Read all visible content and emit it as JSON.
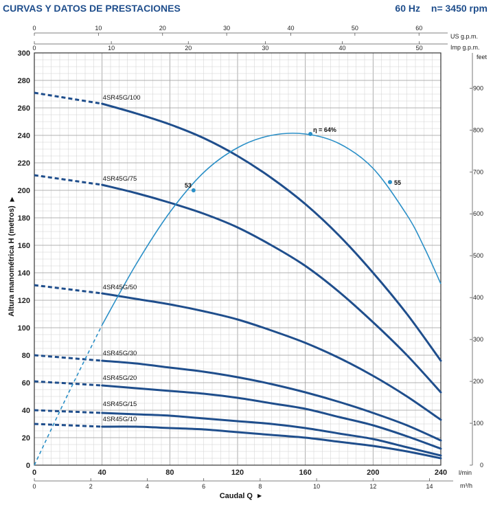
{
  "header": {
    "title": "CURVAS Y DATOS DE PRESTACIONES",
    "frequency": "60 Hz",
    "speed": "n= 3450 rpm"
  },
  "chart_data": {
    "type": "line",
    "ylabel": "Altura manométrica H (metros)",
    "xlabel": "Caudal Q",
    "x_unit": "l/min",
    "x_unit_m3h": "m³/h",
    "y_unit_right": "feet",
    "unit_usgpm": "US g.p.m.",
    "unit_impgpm": "Imp g.p.m.",
    "xlim": [
      0,
      240
    ],
    "ylim": [
      0,
      300
    ],
    "x_ticks_lmin": [
      0,
      40,
      80,
      120,
      160,
      200,
      240
    ],
    "y_ticks_m": [
      0,
      20,
      40,
      60,
      80,
      100,
      120,
      140,
      160,
      180,
      200,
      220,
      240,
      260,
      280,
      300
    ],
    "ticks_m3h": [
      0,
      2,
      4,
      6,
      8,
      10,
      12,
      14
    ],
    "ticks_usgpm": [
      0,
      10,
      20,
      30,
      40,
      50,
      60
    ],
    "ticks_impgpm": [
      0,
      10,
      20,
      30,
      40,
      50
    ],
    "ticks_feet": [
      0,
      100,
      200,
      300,
      400,
      500,
      600,
      700,
      800,
      900
    ],
    "grid": true,
    "series": [
      {
        "name": "4SR45G/100",
        "dash_end_x": 40,
        "label_pos": [
          40,
          264
        ],
        "x": [
          0,
          40,
          60,
          80,
          100,
          120,
          140,
          160,
          180,
          200,
          220,
          240
        ],
        "y": [
          271,
          263,
          256,
          248,
          238,
          225,
          209,
          190,
          167,
          140,
          110,
          76
        ]
      },
      {
        "name": "4SR45G/75",
        "dash_end_x": 40,
        "label_pos": [
          40,
          205
        ],
        "x": [
          0,
          40,
          60,
          80,
          100,
          120,
          140,
          160,
          180,
          200,
          220,
          240
        ],
        "y": [
          211,
          204,
          198,
          191,
          183,
          173,
          160,
          145,
          126,
          104,
          80,
          53
        ]
      },
      {
        "name": "4SR45G/50",
        "dash_end_x": 40,
        "label_pos": [
          40,
          126
        ],
        "x": [
          0,
          40,
          60,
          80,
          100,
          120,
          140,
          160,
          180,
          200,
          220,
          240
        ],
        "y": [
          131,
          125,
          121,
          117,
          112,
          106,
          98,
          89,
          78,
          65,
          50,
          33
        ]
      },
      {
        "name": "4SR45G/30",
        "dash_end_x": 40,
        "label_pos": [
          40,
          78
        ],
        "x": [
          0,
          40,
          60,
          80,
          100,
          120,
          140,
          160,
          180,
          200,
          220,
          240
        ],
        "y": [
          80,
          76,
          74,
          71,
          68,
          64,
          59,
          53,
          46,
          38,
          29,
          18
        ]
      },
      {
        "name": "4SR45G/20",
        "dash_end_x": 40,
        "label_pos": [
          40,
          60
        ],
        "x": [
          0,
          40,
          60,
          80,
          100,
          120,
          140,
          160,
          180,
          200,
          220,
          240
        ],
        "y": [
          61,
          58,
          56,
          54,
          52,
          49,
          45,
          41,
          35,
          29,
          21,
          12
        ]
      },
      {
        "name": "4SR45G/15",
        "dash_end_x": 40,
        "label_pos": [
          40,
          41
        ],
        "x": [
          0,
          40,
          60,
          80,
          100,
          120,
          140,
          160,
          180,
          200,
          220,
          240
        ],
        "y": [
          40,
          38,
          37,
          36,
          34,
          32,
          30,
          27,
          23,
          19,
          13,
          7
        ]
      },
      {
        "name": "4SR45G/10",
        "dash_end_x": 40,
        "label_pos": [
          40,
          30
        ],
        "x": [
          0,
          40,
          60,
          80,
          100,
          120,
          140,
          160,
          180,
          200,
          220,
          240
        ],
        "y": [
          30,
          28,
          28,
          27,
          26,
          24,
          22,
          20,
          17,
          14,
          10,
          5
        ]
      }
    ],
    "efficiency": {
      "color": "#2a8fc7",
      "dash_end_x": 40,
      "x": [
        0,
        20,
        40,
        60,
        80,
        100,
        120,
        140,
        160,
        180,
        200,
        220,
        230,
        240
      ],
      "y": [
        0,
        52,
        102,
        146,
        184,
        213,
        231,
        240,
        241,
        234,
        216,
        182,
        159,
        132
      ],
      "points": [
        {
          "label": "53",
          "x": 94,
          "y": 200
        },
        {
          "label": "η = 64%",
          "x": 163,
          "y": 241
        },
        {
          "label": "55",
          "x": 210,
          "y": 206
        }
      ]
    },
    "curve_color": "#1f4e8c"
  }
}
